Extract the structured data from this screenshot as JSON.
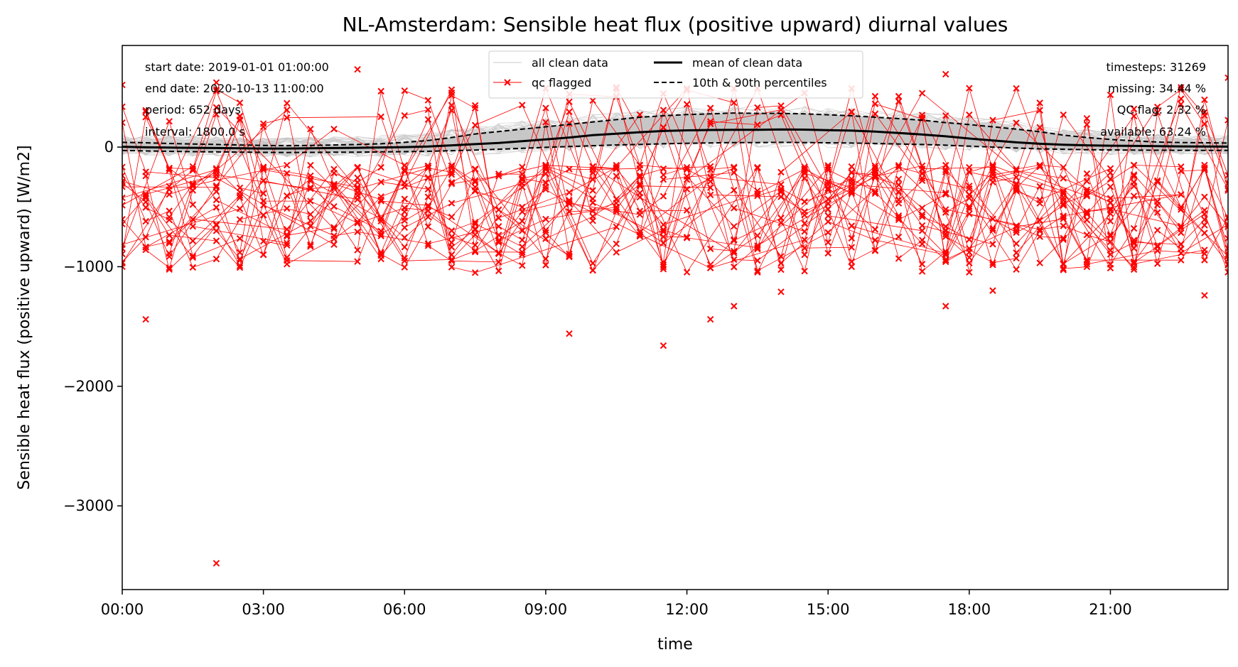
{
  "chart_data": {
    "type": "line",
    "title": "NL-Amsterdam: Sensible heat flux (positive upward) diurnal values",
    "xlabel": "time",
    "ylabel": "Sensible heat flux (positive upward) [W/m2]",
    "xlim": [
      0,
      23.5
    ],
    "ylim": [
      -3700,
      850
    ],
    "x_ticks": [
      {
        "value": 0,
        "label": "00:00"
      },
      {
        "value": 3,
        "label": "03:00"
      },
      {
        "value": 6,
        "label": "06:00"
      },
      {
        "value": 9,
        "label": "09:00"
      },
      {
        "value": 12,
        "label": "12:00"
      },
      {
        "value": 15,
        "label": "15:00"
      },
      {
        "value": 18,
        "label": "18:00"
      },
      {
        "value": 21,
        "label": "21:00"
      }
    ],
    "y_ticks": [
      {
        "value": 0,
        "label": "0"
      },
      {
        "value": -1000,
        "label": "−1000"
      },
      {
        "value": -2000,
        "label": "−2000"
      },
      {
        "value": -3000,
        "label": "−3000"
      }
    ],
    "grid": false,
    "legend_position": "top-center",
    "legend": [
      {
        "label": "all clean data",
        "style": "thin-gray-line"
      },
      {
        "label": "mean of clean data",
        "style": "thick-black-line"
      },
      {
        "label": "qc flagged",
        "style": "red-line-x-marker"
      },
      {
        "label": "10th & 90th percentiles",
        "style": "dashed-black-line"
      }
    ],
    "info_left": [
      "start date: 2019-01-01 01:00:00",
      "end date: 2020-10-13 11:00:00",
      "period: 652 days",
      "interval: 1800.0 s"
    ],
    "info_right": [
      "timesteps: 31269",
      "missing: 34.44 %",
      "QC flag: 2.32 %",
      "available: 63.24 %"
    ],
    "x": [
      0,
      0.5,
      1,
      1.5,
      2,
      2.5,
      3,
      3.5,
      4,
      4.5,
      5,
      5.5,
      6,
      6.5,
      7,
      7.5,
      8,
      8.5,
      9,
      9.5,
      10,
      10.5,
      11,
      11.5,
      12,
      12.5,
      13,
      13.5,
      14,
      14.5,
      15,
      15.5,
      16,
      16.5,
      17,
      17.5,
      18,
      18.5,
      19,
      19.5,
      20,
      20.5,
      21,
      21.5,
      22,
      22.5,
      23,
      23.5
    ],
    "series": [
      {
        "name": "mean of clean data",
        "values": [
          3,
          -2,
          -4,
          -6,
          -8,
          -10,
          -12,
          -12,
          -10,
          -8,
          -6,
          -3,
          0,
          5,
          15,
          25,
          35,
          50,
          65,
          80,
          100,
          112,
          125,
          135,
          140,
          143,
          145,
          145,
          148,
          146,
          142,
          138,
          130,
          118,
          105,
          90,
          72,
          55,
          40,
          28,
          20,
          15,
          12,
          10,
          8,
          6,
          5,
          4
        ]
      },
      {
        "name": "10th & 90th percentiles",
        "values": [
          -28,
          -32,
          -35,
          -38,
          -40,
          -42,
          -44,
          -45,
          -44,
          -43,
          -42,
          -40,
          -38,
          -35,
          -30,
          -25,
          -18,
          -10,
          -2,
          5,
          12,
          18,
          22,
          28,
          32,
          35,
          38,
          38,
          40,
          38,
          36,
          34,
          30,
          26,
          22,
          16,
          8,
          0,
          -8,
          -14,
          -18,
          -22,
          -24,
          -25,
          -26,
          -27,
          -28,
          -28
        ]
      },
      {
        "name": "10th & 90th percentiles",
        "values": [
          40,
          36,
          30,
          26,
          22,
          18,
          14,
          12,
          14,
          18,
          22,
          28,
          40,
          55,
          80,
          110,
          130,
          150,
          170,
          190,
          210,
          230,
          250,
          262,
          272,
          278,
          285,
          282,
          282,
          278,
          270,
          262,
          250,
          238,
          225,
          205,
          188,
          170,
          150,
          128,
          100,
          80,
          64,
          52,
          42,
          38,
          36,
          34
        ]
      }
    ],
    "qc_flagged_examples": [
      {
        "x": 0,
        "y": 520
      },
      {
        "x": 0,
        "y": -1000
      },
      {
        "x": 0.5,
        "y": -1440
      },
      {
        "x": 2,
        "y": -3480
      },
      {
        "x": 2,
        "y": 540
      },
      {
        "x": 5,
        "y": 650
      },
      {
        "x": 9.5,
        "y": -1560
      },
      {
        "x": 11.5,
        "y": -1660
      },
      {
        "x": 12.5,
        "y": -1440
      },
      {
        "x": 13,
        "y": -1330
      },
      {
        "x": 14,
        "y": -1210
      },
      {
        "x": 17.5,
        "y": 610
      },
      {
        "x": 17.5,
        "y": -1330
      },
      {
        "x": 18.5,
        "y": -1200
      },
      {
        "x": 23,
        "y": -1240
      },
      {
        "x": 23.5,
        "y": 580
      }
    ],
    "colors": {
      "clean": "#c8c8c8",
      "band": "#c0c0c0",
      "qc": "#ff0000",
      "mean": "#000000",
      "percentile": "#000000"
    }
  }
}
